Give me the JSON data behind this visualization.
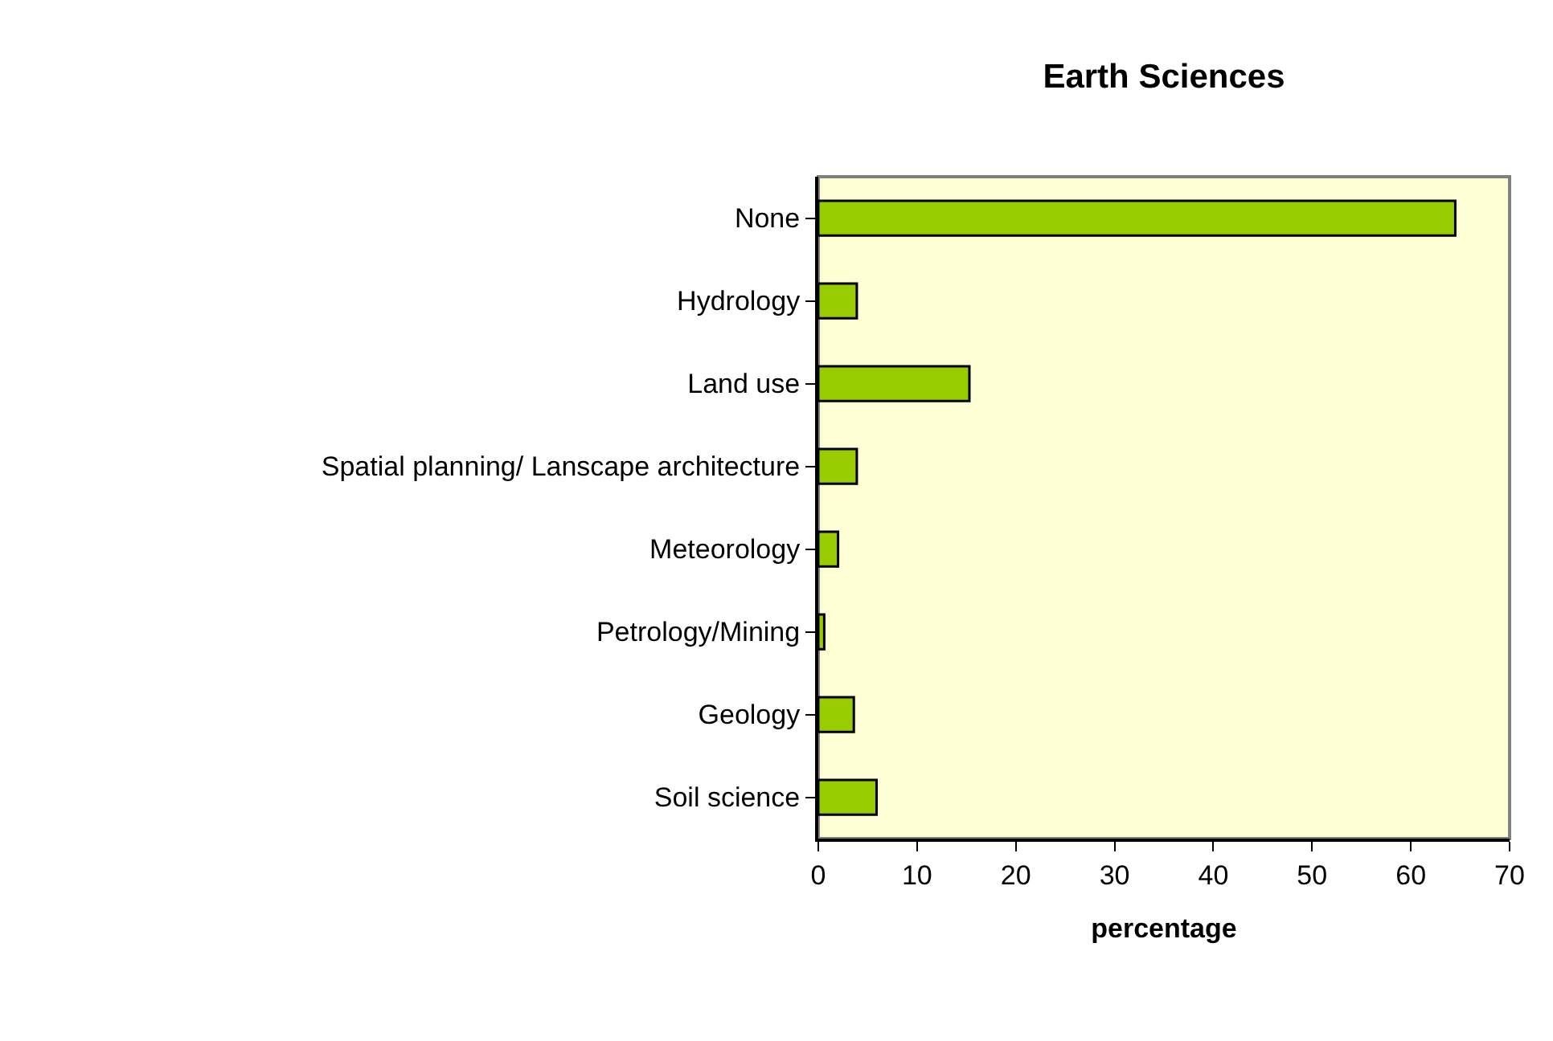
{
  "chart_data": {
    "type": "bar",
    "orientation": "horizontal",
    "title": "Earth Sciences",
    "xlabel": "percentage",
    "categories": [
      "None",
      "Hydrology",
      "Land use",
      "Spatial planning/ Lanscape architecture",
      "Meteorology",
      "Petrology/Mining",
      "Geology",
      "Soil science"
    ],
    "values": [
      64.5,
      3.9,
      15.3,
      3.9,
      2.0,
      0.6,
      3.6,
      5.9
    ],
    "color": "#99cc00",
    "xlim": [
      0,
      70
    ],
    "xticks": [
      0,
      10,
      20,
      30,
      40,
      50,
      60,
      70
    ],
    "grid": false,
    "legend": false
  }
}
